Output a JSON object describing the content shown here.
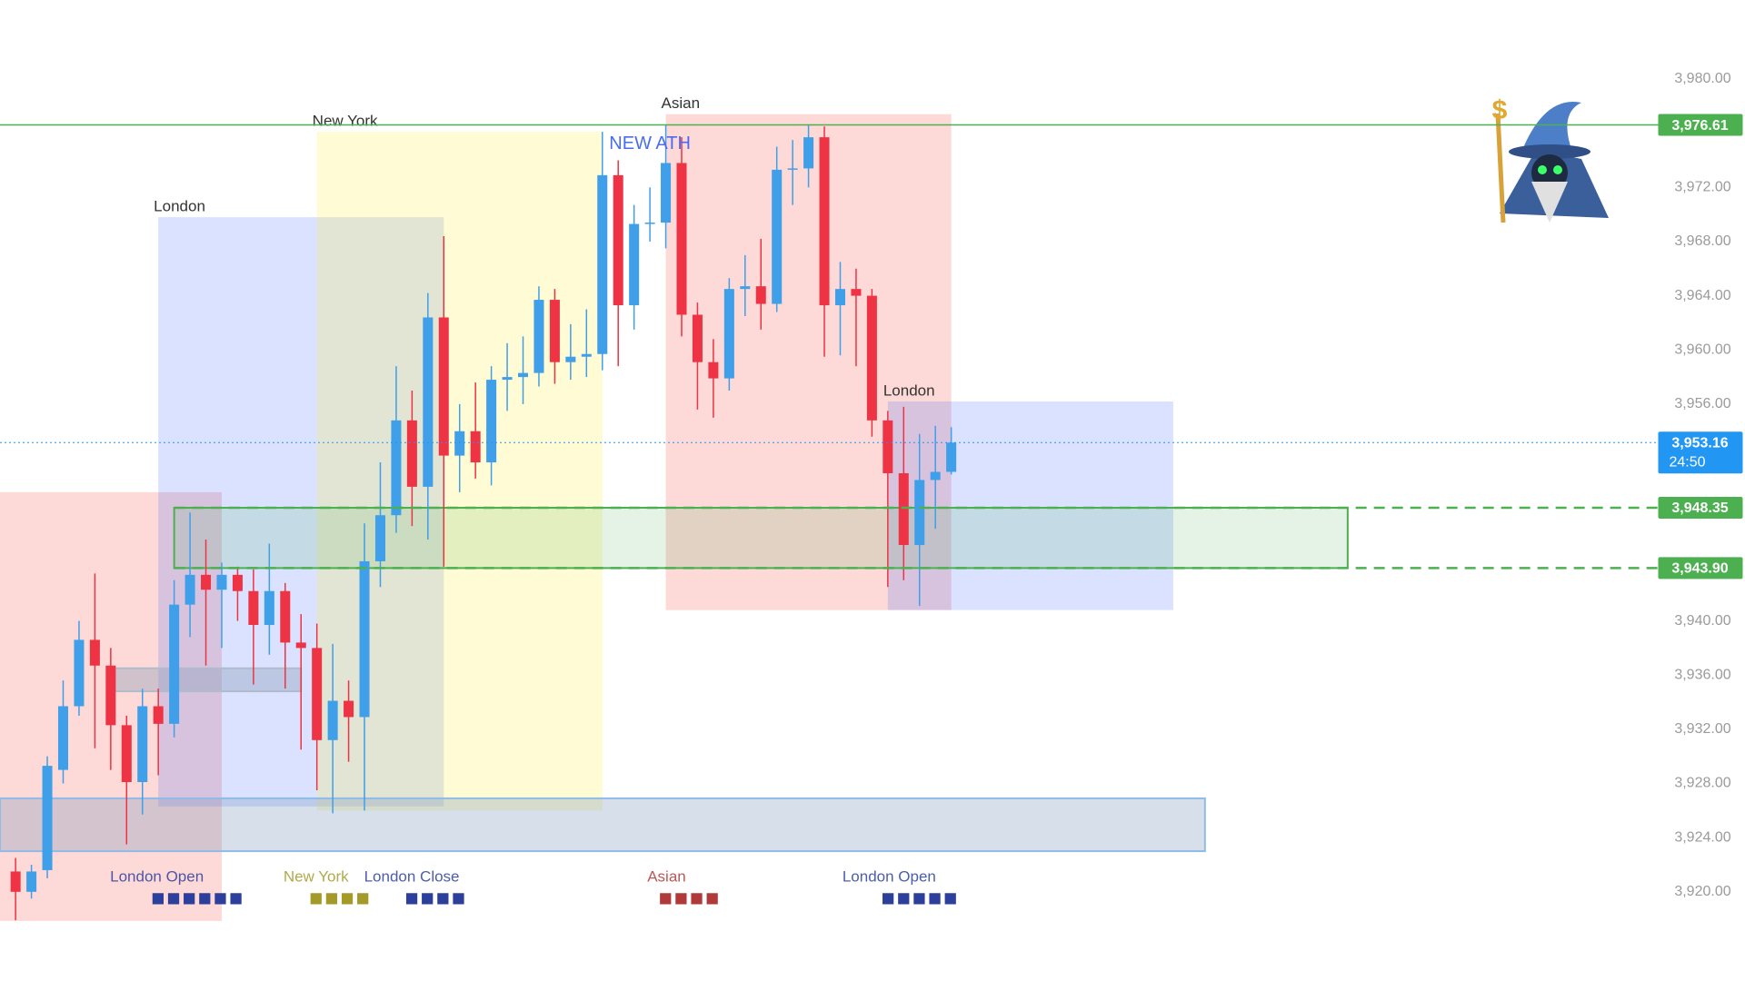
{
  "chart_data": {
    "type": "candlestick",
    "up_color": "#3f9fe8",
    "down_color": "#ee3344",
    "ylim": [
      3917.85,
      3983
    ],
    "yticks": [
      {
        "value": 3980,
        "label": "3,980.00"
      },
      {
        "value": 3972,
        "label": "3,972.00"
      },
      {
        "value": 3968,
        "label": "3,968.00"
      },
      {
        "value": 3964,
        "label": "3,964.00"
      },
      {
        "value": 3960,
        "label": "3,960.00"
      },
      {
        "value": 3956,
        "label": "3,956.00"
      },
      {
        "value": 3940,
        "label": "3,940.00"
      },
      {
        "value": 3936,
        "label": "3,936.00"
      },
      {
        "value": 3932,
        "label": "3,932.00"
      },
      {
        "value": 3928,
        "label": "3,928.00"
      },
      {
        "value": 3924,
        "label": "3,924.00"
      },
      {
        "value": 3920,
        "label": "3,920.00"
      }
    ],
    "open": [
      3921.5,
      3920,
      3921.6,
      3929,
      3933.7,
      3938.6,
      3936.7,
      3932.3,
      3928.1,
      3933.7,
      3932.4,
      3941.2,
      3943.4,
      3942.3,
      3943.4,
      3942.2,
      3939.7,
      3942.2,
      3938.4,
      3938,
      3931.2,
      3934.1,
      3932.9,
      3944.4,
      3947.8,
      3954.8,
      3949.9,
      3962.4,
      3952.2,
      3954,
      3951.7,
      3957.8,
      3958,
      3958.3,
      3963.7,
      3959.1,
      3959.5,
      3959.7,
      3972.9,
      3963.3,
      3969.3,
      3969.4,
      3973.8,
      3962.6,
      3959.1,
      3957.9,
      3964.5,
      3964.7,
      3963.4,
      3973.3,
      3973.4,
      3975.7,
      3963.3,
      3964.5,
      3964,
      3954.8,
      3950.9,
      3945.6,
      3950.4,
      3951
    ],
    "high": [
      3922.5,
      3922,
      3930,
      3935.6,
      3940,
      3943.5,
      3938,
      3933,
      3935,
      3935,
      3943,
      3948,
      3946,
      3944.3,
      3944,
      3943.8,
      3945.7,
      3942.8,
      3940.5,
      3939.8,
      3938.3,
      3935.6,
      3947.2,
      3951.7,
      3958.8,
      3957,
      3964.2,
      3968.4,
      3956,
      3957.6,
      3958.8,
      3960.5,
      3961,
      3964.7,
      3964.5,
      3961.9,
      3963,
      3976.1,
      3974,
      3970.7,
      3972,
      3976.6,
      3975.7,
      3963.5,
      3960.8,
      3965.3,
      3967,
      3968.2,
      3975,
      3975.5,
      3976.6,
      3976.5,
      3966.5,
      3966,
      3964.5,
      3955.5,
      3955.8,
      3953.8,
      3954.4,
      3954.3
    ],
    "low": [
      3917.9,
      3919.5,
      3921,
      3928,
      3933,
      3930.6,
      3929,
      3923.5,
      3925.7,
      3928.6,
      3931.4,
      3938.8,
      3936.7,
      3938,
      3940,
      3935.3,
      3937.5,
      3935,
      3930.5,
      3927.5,
      3925.8,
      3929.6,
      3926,
      3942.5,
      3946.5,
      3947,
      3946,
      3944,
      3949.5,
      3950.5,
      3950,
      3955.5,
      3956,
      3957.3,
      3957.5,
      3957.8,
      3958,
      3958.5,
      3958.8,
      3961.5,
      3968,
      3967.5,
      3961,
      3955.6,
      3955,
      3957,
      3962.5,
      3961.5,
      3962.8,
      3970.7,
      3972,
      3959.5,
      3959.6,
      3958.8,
      3953.6,
      3942.5,
      3943,
      3941.1,
      3946.8,
      3950.8
    ],
    "close": [
      3920,
      3921.5,
      3929.3,
      3933.7,
      3938.6,
      3936.7,
      3932.3,
      3928.1,
      3933.7,
      3932.4,
      3941.2,
      3943.4,
      3942.3,
      3943.4,
      3942.2,
      3939.7,
      3942.2,
      3938.4,
      3938,
      3931.2,
      3934.1,
      3932.9,
      3944.4,
      3947.8,
      3954.8,
      3949.9,
      3962.4,
      3952.2,
      3954,
      3951.7,
      3957.8,
      3958,
      3958.3,
      3963.7,
      3959.1,
      3959.5,
      3959.7,
      3972.9,
      3963.3,
      3969.3,
      3969.4,
      3973.8,
      3962.6,
      3959.1,
      3957.9,
      3964.5,
      3964.7,
      3963.4,
      3973.3,
      3973.4,
      3975.7,
      3963.3,
      3964.5,
      3964,
      3954.8,
      3950.9,
      3945.6,
      3950.4,
      3951,
      3953.16
    ],
    "sessions": [
      {
        "color": "rgba(244,67,54,0.2)",
        "top": 3949.5,
        "bottom": 3917.85,
        "start": -1,
        "end": 13
      },
      {
        "label": "London",
        "color": "rgba(70,110,255,0.2)",
        "top": 3969.8,
        "bottom": 3926.3,
        "start": 9,
        "end": 27
      },
      {
        "label": "New York",
        "color": "rgba(255,235,59,0.22)",
        "top": 3976.1,
        "bottom": 3926,
        "start": 19,
        "end": 37
      },
      {
        "label": "Asian",
        "color": "rgba(244,67,54,0.2)",
        "top": 3977.4,
        "bottom": 3940.8,
        "start": 41,
        "end": 59
      },
      {
        "label": "London",
        "color": "rgba(70,110,255,0.2)",
        "top": 3956.2,
        "bottom": 3940.8,
        "start": 55,
        "end": 73
      }
    ],
    "zones": [
      {
        "color": "rgba(120,150,185,0.3)",
        "stroke": "#8fbbe8",
        "top": 3926.9,
        "bottom": 3923,
        "start": -1,
        "end": 75
      },
      {
        "color": "rgba(140,160,185,0.4)",
        "stroke": "#b0bccb",
        "top": 3936.5,
        "bottom": 3934.8,
        "start": 6,
        "end": 18
      },
      {
        "color": "rgba(76,175,80,0.15)",
        "stroke": "#4caf50",
        "top": 3948.35,
        "bottom": 3943.9,
        "start": 10,
        "end": 84
      }
    ],
    "levels": [
      {
        "value": 3976.61,
        "label": "3,976.61",
        "color": "#4caf50",
        "style": "solid"
      },
      {
        "value": 3948.35,
        "label": "3,948.35",
        "color": "#4caf50",
        "style": "dashed",
        "start": 10
      },
      {
        "value": 3943.9,
        "label": "3,943.90",
        "color": "#4caf50",
        "style": "dashed",
        "start": 10
      }
    ],
    "current_price": {
      "value": 3953.16,
      "label": "3,953.16",
      "countdown": "24:50",
      "color": "#2196f3"
    },
    "annotation": {
      "text": "NEW ATH",
      "x": 40,
      "y": 3975.2,
      "color": "#4a6cf0"
    },
    "session_markers": [
      {
        "label": "London Open",
        "color": "#2c3f9c"
      },
      {
        "label": "New York",
        "color": "#a39a2a"
      },
      {
        "label": "London Close",
        "color": "#2c3f9c"
      },
      {
        "label": "Asian",
        "color": "#b03a3a"
      },
      {
        "label": "London Open",
        "color": "#2c3f9c"
      }
    ]
  }
}
